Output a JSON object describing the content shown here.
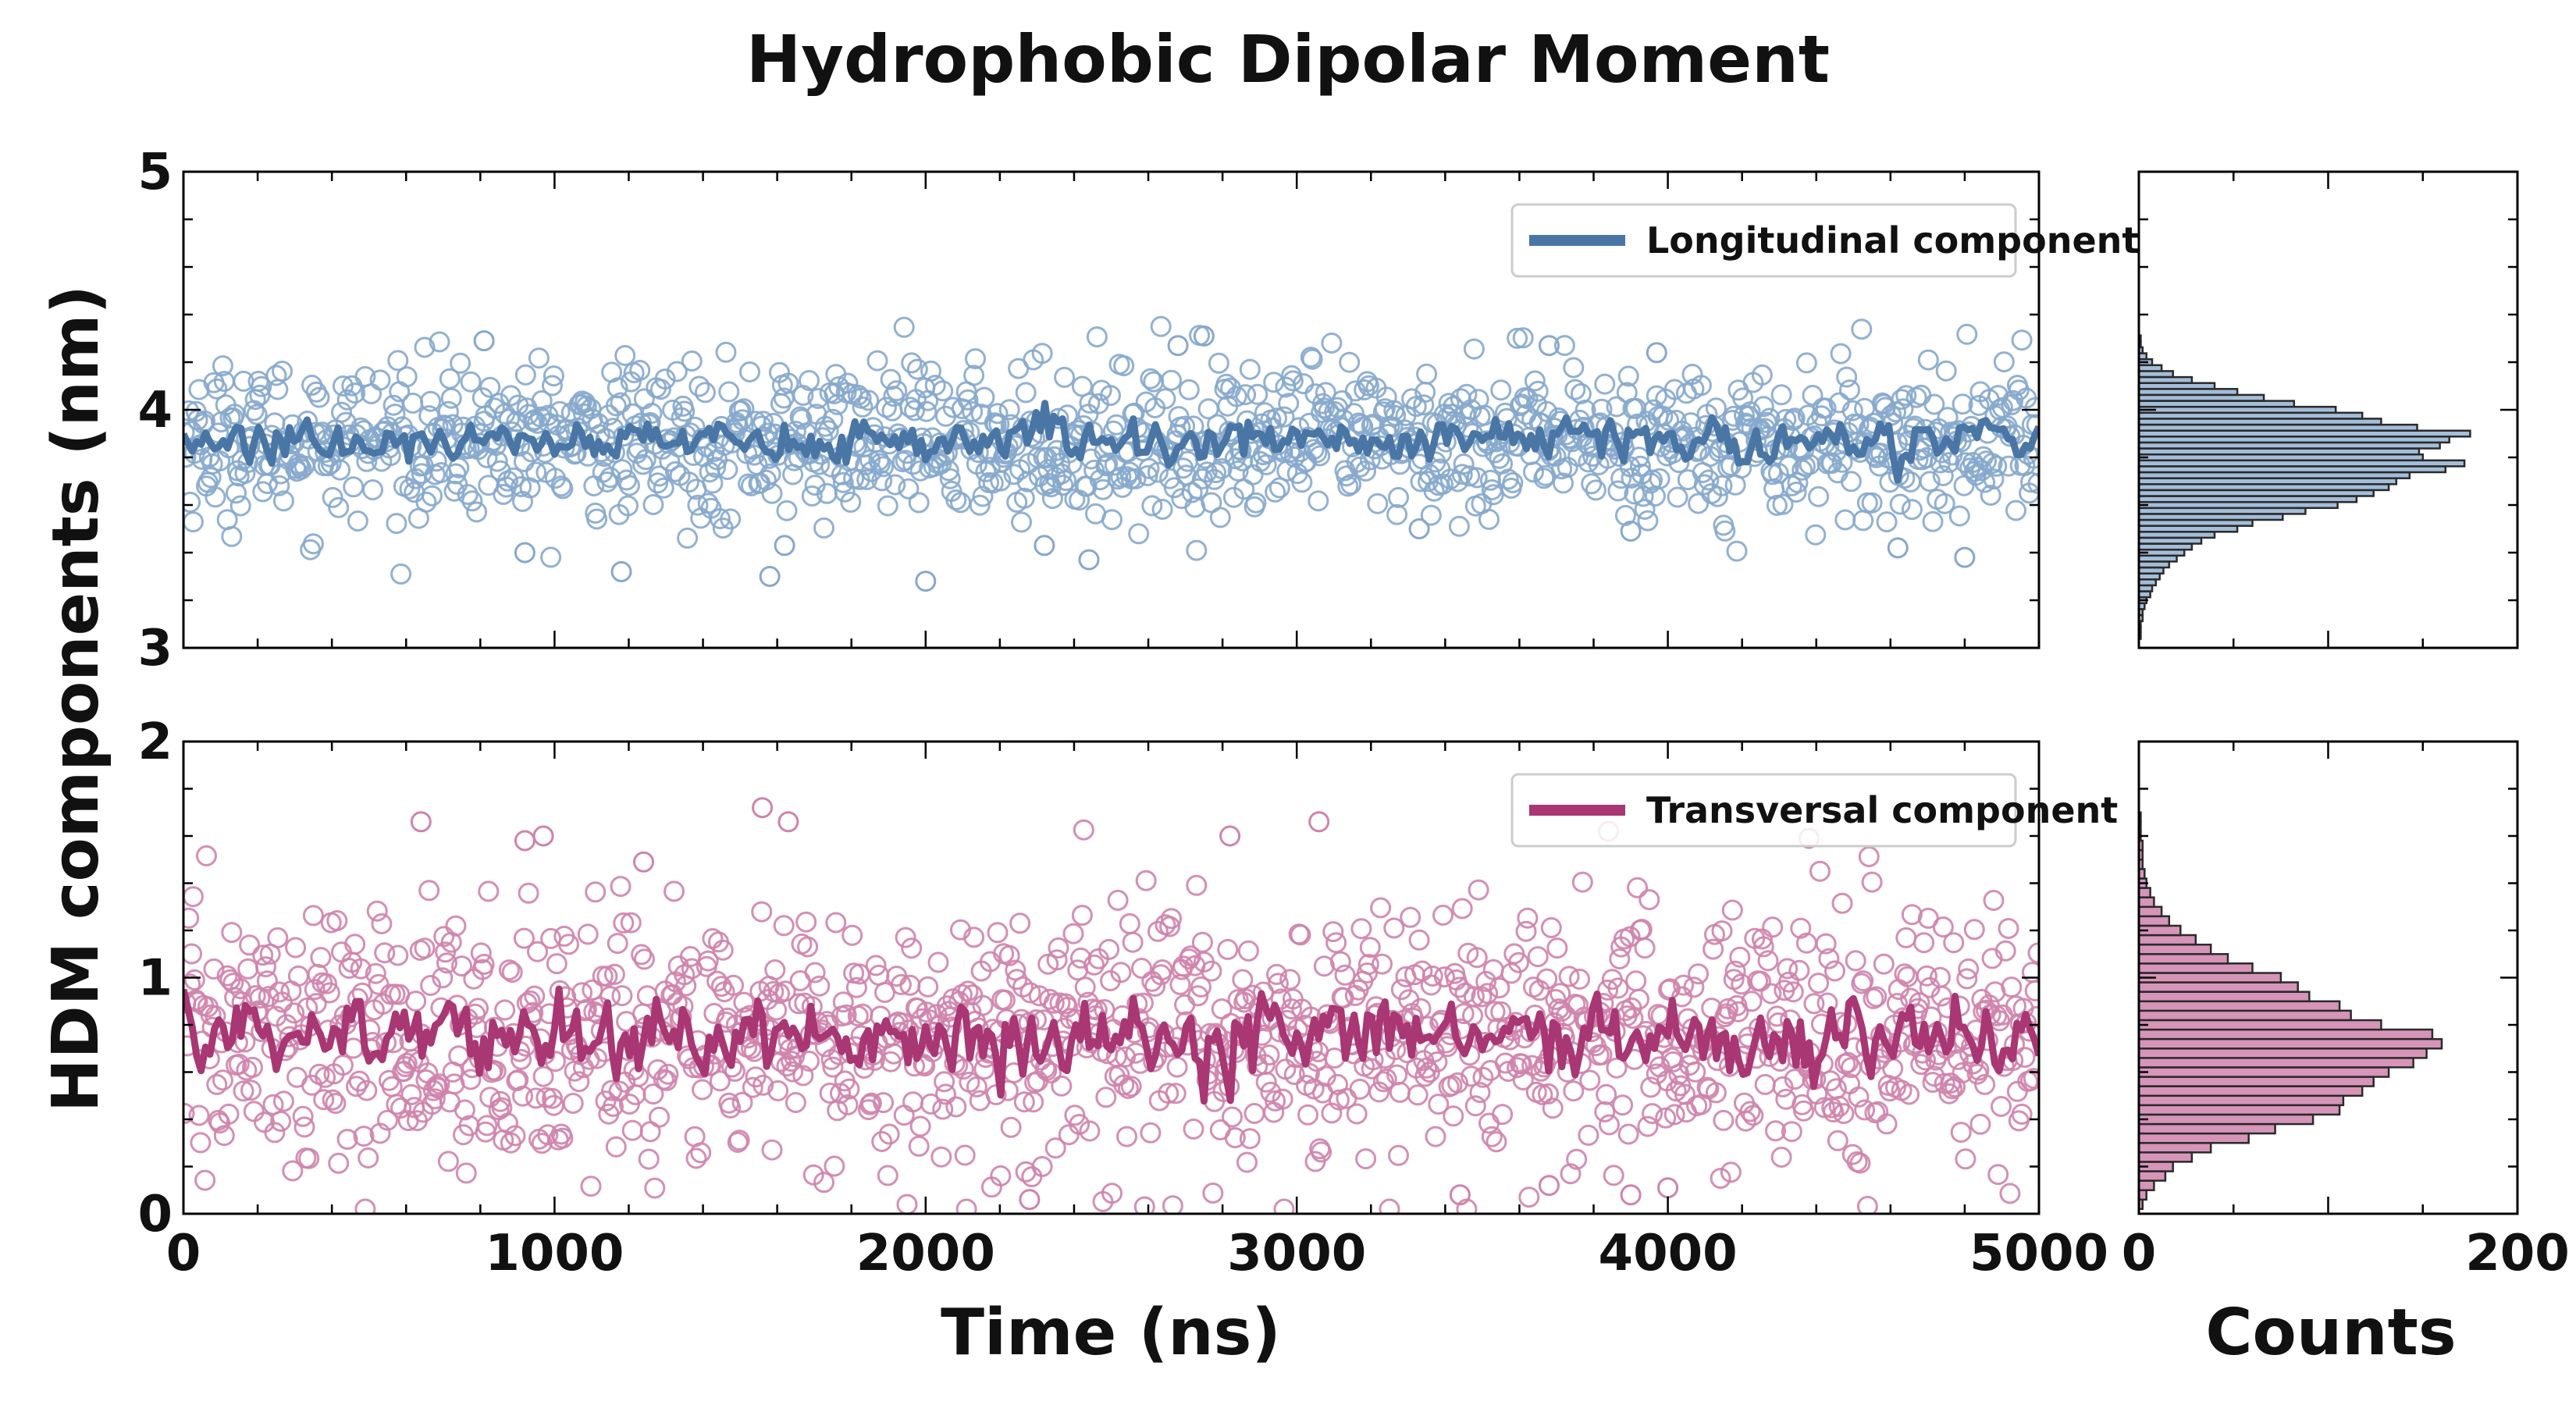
{
  "chart_data": {
    "type": "scatter",
    "title": "Hydrophobic Dipolar Moment",
    "xlabel": "Time (ns)",
    "ylabel": "HDM components (nm)",
    "hist_xlabel": "Counts",
    "grid": false,
    "legend_position": "top-right",
    "panels": [
      {
        "name": "longitudinal",
        "legend": "Longitudinal component",
        "color": "#4a76a6",
        "marker_color": "#86a8cc",
        "xlim": [
          0,
          5000
        ],
        "ylim": [
          3,
          5
        ],
        "xticks": [
          "0",
          "1000",
          "2000",
          "3000",
          "4000",
          "5000"
        ],
        "yticks": [
          "3",
          "4",
          "5"
        ],
        "show_xticklabels": false,
        "mean": 3.87,
        "point_spread": 0.16,
        "running_mean_spread": 0.045,
        "n_points": 1250,
        "outliers": [
          {
            "x": 920,
            "y": 3.4
          },
          {
            "x": 1180,
            "y": 3.32
          },
          {
            "x": 1580,
            "y": 3.3
          },
          {
            "x": 1620,
            "y": 3.43
          },
          {
            "x": 2000,
            "y": 3.28
          },
          {
            "x": 2320,
            "y": 3.43
          },
          {
            "x": 2440,
            "y": 3.37
          },
          {
            "x": 3330,
            "y": 3.5
          },
          {
            "x": 3900,
            "y": 3.49
          },
          {
            "x": 4620,
            "y": 3.42
          },
          {
            "x": 4800,
            "y": 3.38
          },
          {
            "x": 810,
            "y": 4.29
          },
          {
            "x": 2680,
            "y": 4.27
          },
          {
            "x": 2750,
            "y": 4.31
          },
          {
            "x": 3680,
            "y": 4.27
          },
          {
            "x": 3970,
            "y": 4.24
          }
        ],
        "histogram": {
          "xlim": [
            0,
            200
          ],
          "xticks": [
            "0",
            "200"
          ],
          "show_xticklabels": false,
          "bin_width": 0.025,
          "bins": [
            {
              "y": 3.05,
              "count": 1
            },
            {
              "y": 3.075,
              "count": 1
            },
            {
              "y": 3.1,
              "count": 1
            },
            {
              "y": 3.125,
              "count": 2
            },
            {
              "y": 3.15,
              "count": 2
            },
            {
              "y": 3.175,
              "count": 3
            },
            {
              "y": 3.2,
              "count": 4
            },
            {
              "y": 3.225,
              "count": 6
            },
            {
              "y": 3.25,
              "count": 7
            },
            {
              "y": 3.275,
              "count": 9
            },
            {
              "y": 3.3,
              "count": 11
            },
            {
              "y": 3.325,
              "count": 13
            },
            {
              "y": 3.35,
              "count": 16
            },
            {
              "y": 3.375,
              "count": 20
            },
            {
              "y": 3.4,
              "count": 24
            },
            {
              "y": 3.425,
              "count": 28
            },
            {
              "y": 3.45,
              "count": 33
            },
            {
              "y": 3.475,
              "count": 40
            },
            {
              "y": 3.5,
              "count": 52
            },
            {
              "y": 3.525,
              "count": 60
            },
            {
              "y": 3.55,
              "count": 76
            },
            {
              "y": 3.575,
              "count": 88
            },
            {
              "y": 3.6,
              "count": 105
            },
            {
              "y": 3.625,
              "count": 115
            },
            {
              "y": 3.65,
              "count": 124
            },
            {
              "y": 3.675,
              "count": 132
            },
            {
              "y": 3.7,
              "count": 136
            },
            {
              "y": 3.725,
              "count": 143
            },
            {
              "y": 3.75,
              "count": 162
            },
            {
              "y": 3.775,
              "count": 172
            },
            {
              "y": 3.8,
              "count": 150
            },
            {
              "y": 3.825,
              "count": 148
            },
            {
              "y": 3.85,
              "count": 159
            },
            {
              "y": 3.875,
              "count": 164
            },
            {
              "y": 3.9,
              "count": 175
            },
            {
              "y": 3.925,
              "count": 147
            },
            {
              "y": 3.95,
              "count": 128
            },
            {
              "y": 3.975,
              "count": 118
            },
            {
              "y": 4.0,
              "count": 104
            },
            {
              "y": 4.025,
              "count": 82
            },
            {
              "y": 4.05,
              "count": 66
            },
            {
              "y": 4.075,
              "count": 52
            },
            {
              "y": 4.1,
              "count": 40
            },
            {
              "y": 4.125,
              "count": 28
            },
            {
              "y": 4.15,
              "count": 18
            },
            {
              "y": 4.175,
              "count": 12
            },
            {
              "y": 4.2,
              "count": 7
            },
            {
              "y": 4.225,
              "count": 4
            },
            {
              "y": 4.25,
              "count": 2
            },
            {
              "y": 4.275,
              "count": 1
            },
            {
              "y": 4.3,
              "count": 1
            }
          ]
        }
      },
      {
        "name": "transversal",
        "legend": "Transversal component",
        "color": "#a83774",
        "marker_color": "#cf83ac",
        "xlim": [
          0,
          5000
        ],
        "ylim": [
          0,
          2
        ],
        "xticks": [
          "0",
          "1000",
          "2000",
          "3000",
          "4000",
          "5000"
        ],
        "yticks": [
          "0",
          "1",
          "2"
        ],
        "show_xticklabels": true,
        "mean": 0.74,
        "point_spread": 0.27,
        "running_mean_spread": 0.08,
        "n_points": 1250,
        "outliers": [
          {
            "x": 640,
            "y": 1.66
          },
          {
            "x": 920,
            "y": 1.58
          },
          {
            "x": 970,
            "y": 1.6
          },
          {
            "x": 1240,
            "y": 1.49
          },
          {
            "x": 1560,
            "y": 1.72
          },
          {
            "x": 1630,
            "y": 1.66
          },
          {
            "x": 2820,
            "y": 1.6
          },
          {
            "x": 3060,
            "y": 1.66
          },
          {
            "x": 3840,
            "y": 1.62
          },
          {
            "x": 4380,
            "y": 1.59
          },
          {
            "x": 2280,
            "y": 0.06
          },
          {
            "x": 3440,
            "y": 0.08
          },
          {
            "x": 3900,
            "y": 0.08
          },
          {
            "x": 3680,
            "y": 0.12
          },
          {
            "x": 4000,
            "y": 0.11
          }
        ],
        "histogram": {
          "xlim": [
            0,
            200
          ],
          "xticks": [
            "0",
            "200"
          ],
          "show_xticklabels": true,
          "bin_width": 0.04,
          "bins": [
            {
              "y": 0.04,
              "count": 2
            },
            {
              "y": 0.08,
              "count": 4
            },
            {
              "y": 0.12,
              "count": 8
            },
            {
              "y": 0.16,
              "count": 14
            },
            {
              "y": 0.2,
              "count": 18
            },
            {
              "y": 0.24,
              "count": 28
            },
            {
              "y": 0.28,
              "count": 38
            },
            {
              "y": 0.32,
              "count": 58
            },
            {
              "y": 0.36,
              "count": 72
            },
            {
              "y": 0.4,
              "count": 92
            },
            {
              "y": 0.44,
              "count": 106
            },
            {
              "y": 0.48,
              "count": 108
            },
            {
              "y": 0.52,
              "count": 118
            },
            {
              "y": 0.56,
              "count": 124
            },
            {
              "y": 0.6,
              "count": 132
            },
            {
              "y": 0.64,
              "count": 145
            },
            {
              "y": 0.68,
              "count": 152
            },
            {
              "y": 0.72,
              "count": 160
            },
            {
              "y": 0.76,
              "count": 155
            },
            {
              "y": 0.8,
              "count": 128
            },
            {
              "y": 0.84,
              "count": 112
            },
            {
              "y": 0.88,
              "count": 106
            },
            {
              "y": 0.92,
              "count": 90
            },
            {
              "y": 0.96,
              "count": 84
            },
            {
              "y": 1.0,
              "count": 75
            },
            {
              "y": 1.04,
              "count": 60
            },
            {
              "y": 1.08,
              "count": 47
            },
            {
              "y": 1.12,
              "count": 38
            },
            {
              "y": 1.16,
              "count": 30
            },
            {
              "y": 1.2,
              "count": 22
            },
            {
              "y": 1.24,
              "count": 16
            },
            {
              "y": 1.28,
              "count": 12
            },
            {
              "y": 1.32,
              "count": 8
            },
            {
              "y": 1.36,
              "count": 6
            },
            {
              "y": 1.4,
              "count": 4
            },
            {
              "y": 1.44,
              "count": 3
            },
            {
              "y": 1.48,
              "count": 2
            },
            {
              "y": 1.52,
              "count": 2
            },
            {
              "y": 1.56,
              "count": 2
            },
            {
              "y": 1.6,
              "count": 1
            },
            {
              "y": 1.64,
              "count": 1
            },
            {
              "y": 1.68,
              "count": 1
            }
          ]
        }
      }
    ]
  }
}
